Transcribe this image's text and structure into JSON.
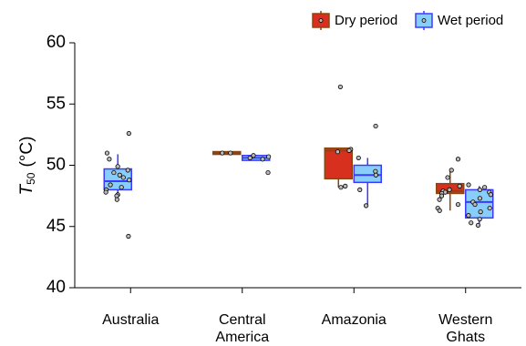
{
  "chart_data": {
    "type": "box",
    "y_label": {
      "symbol": "T",
      "subscript": "50",
      "unit": "(°C)"
    },
    "categories": [
      "Australia",
      "Central America",
      "Amazonia",
      "Western Ghats"
    ],
    "ylim": [
      40,
      60
    ],
    "yticks": [
      40,
      45,
      50,
      55,
      60
    ],
    "legend": "top-right",
    "series": [
      {
        "name": "Dry period",
        "color": "#d7301f",
        "edge_color": "#8b4513",
        "boxes": [
          null,
          {
            "min": 51.0,
            "q1": 51.0,
            "median": 51.0,
            "q3": 51.0,
            "max": 51.0
          },
          {
            "min": 48.2,
            "q1": 48.9,
            "median": 51.2,
            "q3": 51.4,
            "max": 51.4
          },
          {
            "min": 46.3,
            "q1": 47.7,
            "median": 47.9,
            "q3": 48.5,
            "max": 49.6
          }
        ],
        "points": [
          [],
          [
            51.0,
            51.0
          ],
          [
            56.4,
            51.3,
            51.2,
            51.1,
            48.3,
            48.2
          ],
          [
            50.5,
            49.6,
            49.0,
            48.3,
            48.0,
            47.9,
            47.8,
            47.7,
            47.5,
            47.2,
            46.8,
            46.5,
            46.3
          ]
        ]
      },
      {
        "name": "Wet period",
        "color": "#87cefa",
        "edge_color": "#3b3bff",
        "boxes": [
          {
            "min": 47.2,
            "q1": 48.0,
            "median": 48.7,
            "q3": 49.7,
            "max": 50.9
          },
          {
            "min": 50.4,
            "q1": 50.4,
            "median": 50.6,
            "q3": 50.8,
            "max": 50.8
          },
          {
            "min": 46.8,
            "q1": 48.6,
            "median": 49.2,
            "q3": 50.0,
            "max": 50.6
          },
          {
            "min": 45.0,
            "q1": 45.7,
            "median": 47.0,
            "q3": 48.0,
            "max": 48.3
          }
        ],
        "points": [
          [
            52.6,
            51.0,
            50.5,
            49.9,
            49.6,
            49.4,
            49.2,
            49.0,
            48.8,
            48.4,
            48.2,
            48.0,
            47.8,
            47.6,
            47.5,
            47.2,
            44.2
          ],
          [
            50.8,
            50.7,
            50.6,
            50.5,
            49.4
          ],
          [
            53.2,
            50.6,
            49.5,
            49.2,
            48.0,
            46.7
          ],
          [
            48.4,
            48.2,
            48.0,
            47.8,
            47.6,
            47.3,
            47.0,
            46.8,
            46.5,
            46.2,
            45.9,
            45.6,
            45.3,
            45.1
          ]
        ]
      }
    ]
  }
}
